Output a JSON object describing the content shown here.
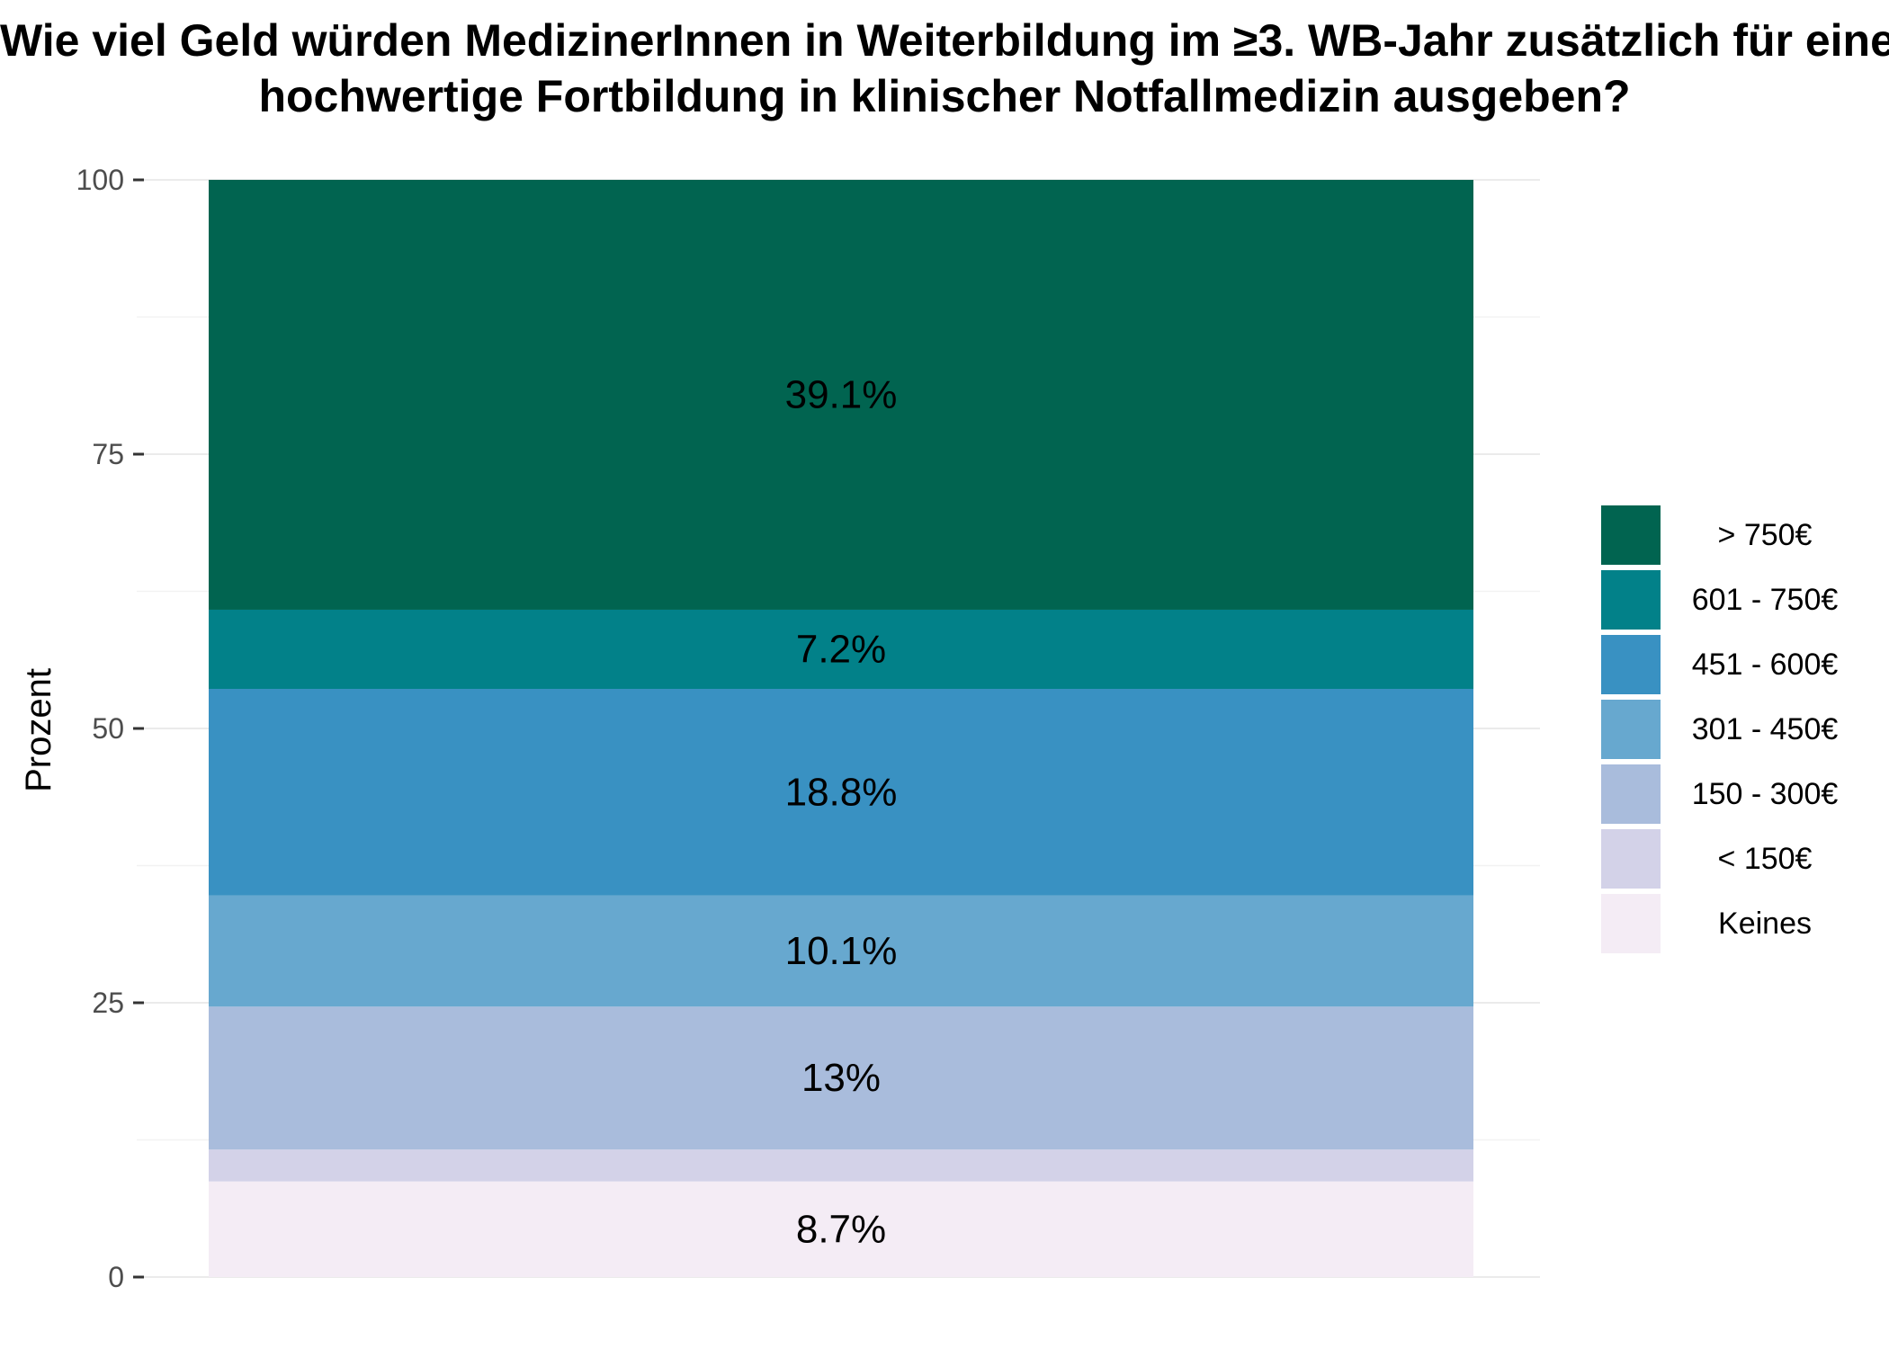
{
  "title_lines": [
    "Wie viel Geld würden MedizinerInnen in Weiterbildung im ≥3. WB-Jahr zusätzlich für eine",
    "hochwertige Fortbildung in klinischer Notfallmedizin ausgeben?"
  ],
  "chart_data": {
    "type": "bar",
    "stacked": true,
    "title": "Wie viel Geld würden MedizinerInnen in Weiterbildung im ≥3. WB-Jahr zusätzlich für eine hochwertige Fortbildung in klinischer Notfallmedizin ausgeben?",
    "xlabel": "",
    "ylabel": "Prozent",
    "ylim": [
      0,
      100
    ],
    "yticks": [
      0,
      25,
      50,
      75,
      100
    ],
    "grid": true,
    "legend_position": "right",
    "series": [
      {
        "name": "Keines",
        "value": 8.7,
        "label": "8.7%",
        "color": "#f4ecf5"
      },
      {
        "name": "< 150€",
        "value": 2.9,
        "label": "",
        "color": "#d3d2e8"
      },
      {
        "name": "150 - 300€",
        "value": 13.0,
        "label": "13%",
        "color": "#a9bcdc"
      },
      {
        "name": "301 - 450€",
        "value": 10.1,
        "label": "10.1%",
        "color": "#67a8cf"
      },
      {
        "name": "451 - 600€",
        "value": 18.8,
        "label": "18.8%",
        "color": "#3991c2"
      },
      {
        "name": "601 - 750€",
        "value": 7.2,
        "label": "7.2%",
        "color": "#028189"
      },
      {
        "name": "> 750€",
        "value": 39.1,
        "label": "39.1%",
        "color": "#016450"
      }
    ]
  }
}
